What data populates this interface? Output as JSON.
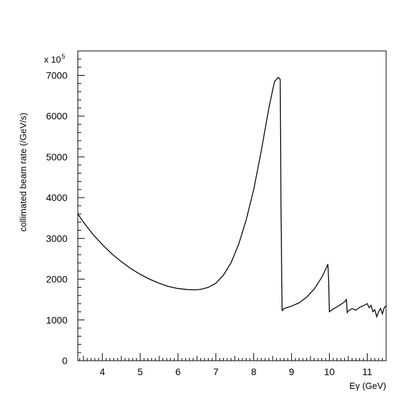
{
  "chart_data": {
    "type": "line",
    "xlabel": "Eγ (GeV)",
    "ylabel": "collimated beam rate (/GeV/s)",
    "scale_label": {
      "prefix": "x 10",
      "exponent": "5"
    },
    "xlim": [
      3.35,
      11.5
    ],
    "ylim": [
      0,
      7600
    ],
    "x_ticks": [
      4,
      5,
      6,
      7,
      8,
      9,
      10,
      11
    ],
    "y_ticks": [
      0,
      1000,
      2000,
      3000,
      4000,
      5000,
      6000,
      7000
    ],
    "grid": false,
    "series": [
      {
        "x": [
          3.35,
          3.5,
          3.75,
          4.0,
          4.25,
          4.5,
          4.75,
          5.0,
          5.25,
          5.5,
          5.75,
          6.0,
          6.25,
          6.5,
          6.65,
          6.8,
          7.0,
          7.2,
          7.4,
          7.6,
          7.8,
          8.0,
          8.2,
          8.4,
          8.55,
          8.65,
          8.7,
          8.72,
          8.75,
          8.76,
          8.8,
          9.0,
          9.2,
          9.4,
          9.6,
          9.8,
          9.93,
          9.96,
          9.98,
          10.0,
          10.1,
          10.2,
          10.3,
          10.4,
          10.45,
          10.47,
          10.5,
          10.6,
          10.7,
          10.8,
          10.9,
          11.0,
          11.05,
          11.1,
          11.15,
          11.2,
          11.25,
          11.3,
          11.35,
          11.4,
          11.45,
          11.5
        ],
        "y": [
          3600,
          3400,
          3100,
          2850,
          2620,
          2430,
          2260,
          2120,
          2000,
          1900,
          1820,
          1770,
          1745,
          1740,
          1760,
          1800,
          1900,
          2100,
          2400,
          2850,
          3450,
          4200,
          5150,
          6200,
          6850,
          6950,
          6900,
          3800,
          1250,
          1230,
          1280,
          1340,
          1420,
          1560,
          1760,
          2050,
          2300,
          2370,
          2000,
          1200,
          1270,
          1320,
          1380,
          1440,
          1500,
          1180,
          1220,
          1280,
          1240,
          1310,
          1350,
          1400,
          1300,
          1360,
          1200,
          1250,
          1080,
          1200,
          1280,
          1150,
          1300,
          1350
        ]
      }
    ]
  }
}
